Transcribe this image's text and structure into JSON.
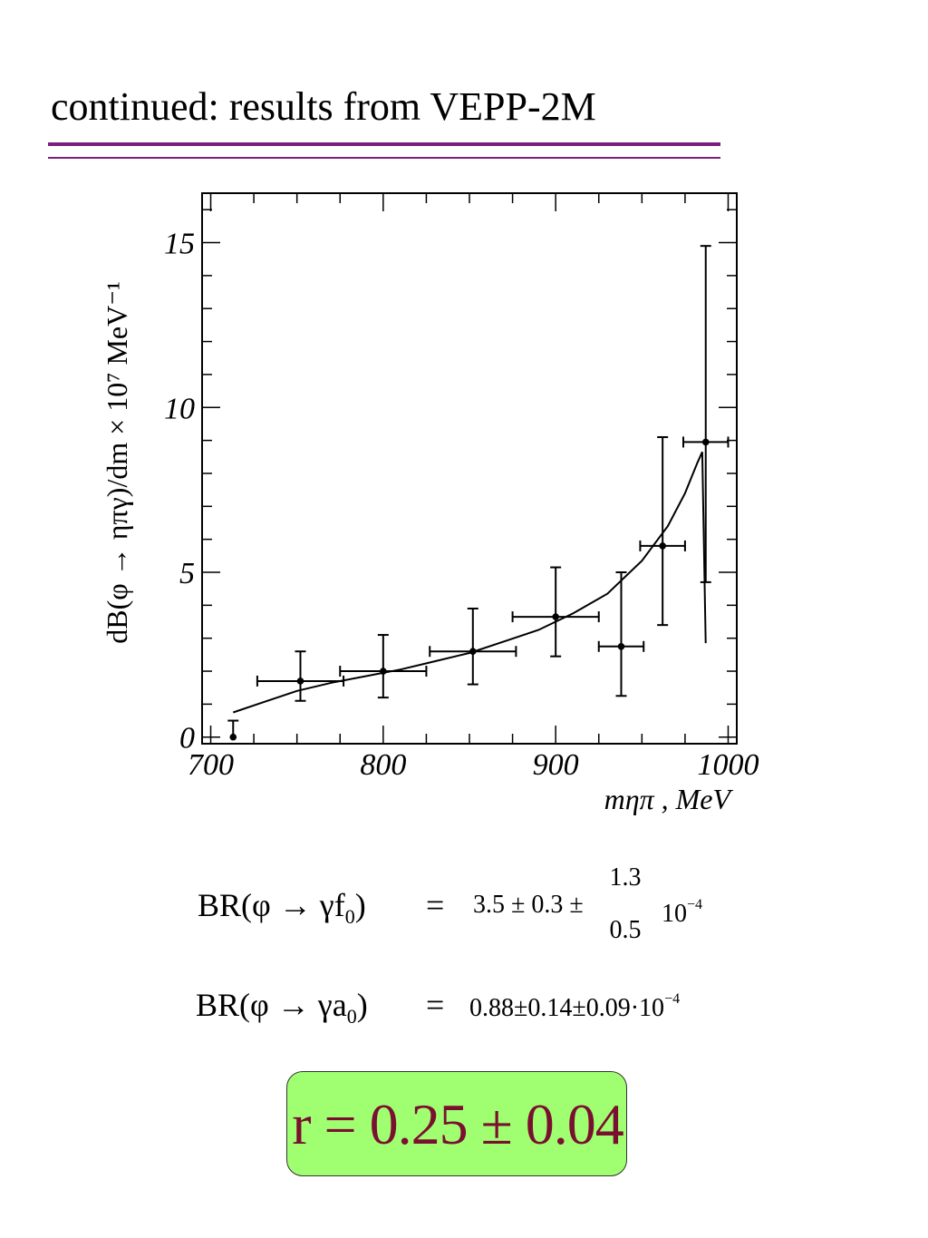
{
  "slide": {
    "title": "continued: results from VEPP-2M"
  },
  "chart_data": {
    "type": "scatter",
    "ylabel": "dB(φ → ηπγ)/dm × 10⁷ MeV⁻¹",
    "xlabel": "mηπ , MeV",
    "xlim": [
      695,
      1005
    ],
    "ylim": [
      -0.2,
      16.5
    ],
    "x_ticks": [
      "700",
      "800",
      "900",
      "1000"
    ],
    "y_ticks": [
      "0",
      "5",
      "10",
      "15"
    ],
    "points": [
      {
        "x": 713,
        "y": 0.0,
        "xerr": 0,
        "yerr_low": 0.0,
        "yerr_high": 0.5
      },
      {
        "x": 752,
        "y": 1.7,
        "xerr": 25,
        "yerr_low": 0.6,
        "yerr_high": 0.9
      },
      {
        "x": 800,
        "y": 2.0,
        "xerr": 25,
        "yerr_low": 0.8,
        "yerr_high": 1.1
      },
      {
        "x": 852,
        "y": 2.6,
        "xerr": 25,
        "yerr_low": 1.0,
        "yerr_high": 1.3
      },
      {
        "x": 900,
        "y": 3.65,
        "xerr": 25,
        "yerr_low": 1.2,
        "yerr_high": 1.5
      },
      {
        "x": 938,
        "y": 2.75,
        "xerr": 13,
        "yerr_low": 1.5,
        "yerr_high": 2.25
      },
      {
        "x": 962,
        "y": 5.8,
        "xerr": 13,
        "yerr_low": 2.4,
        "yerr_high": 3.3
      },
      {
        "x": 987,
        "y": 8.95,
        "xerr": 13,
        "yerr_low": 4.25,
        "yerr_high": 5.95
      }
    ],
    "fit_curve": {
      "x": [
        713,
        730,
        750,
        770,
        790,
        810,
        830,
        850,
        870,
        890,
        910,
        930,
        950,
        965,
        975,
        982,
        985,
        987
      ],
      "y": [
        0.75,
        1.05,
        1.4,
        1.65,
        1.85,
        2.05,
        2.3,
        2.55,
        2.9,
        3.25,
        3.75,
        4.35,
        5.35,
        6.4,
        7.4,
        8.3,
        8.65,
        2.85
      ]
    }
  },
  "equations": {
    "f0": {
      "lhs": "BR(φ → γf",
      "lhs_sub": "0",
      "lhs_close": ")",
      "equals": "=",
      "value": "3.5 ± 0.3 ±",
      "upper": "1.3",
      "lower": "0.5",
      "factor": "10",
      "factor_exp": "−4"
    },
    "a0": {
      "lhs": "BR(φ → γa",
      "lhs_sub": "0",
      "lhs_close": ")",
      "equals": "=",
      "value": "0.88±0.14±0.09·10",
      "value_exp": "−4"
    }
  },
  "result": {
    "text": "r = 0.25 ± 0.04",
    "box_color": "#a0ff70",
    "text_color": "#7a1030"
  }
}
